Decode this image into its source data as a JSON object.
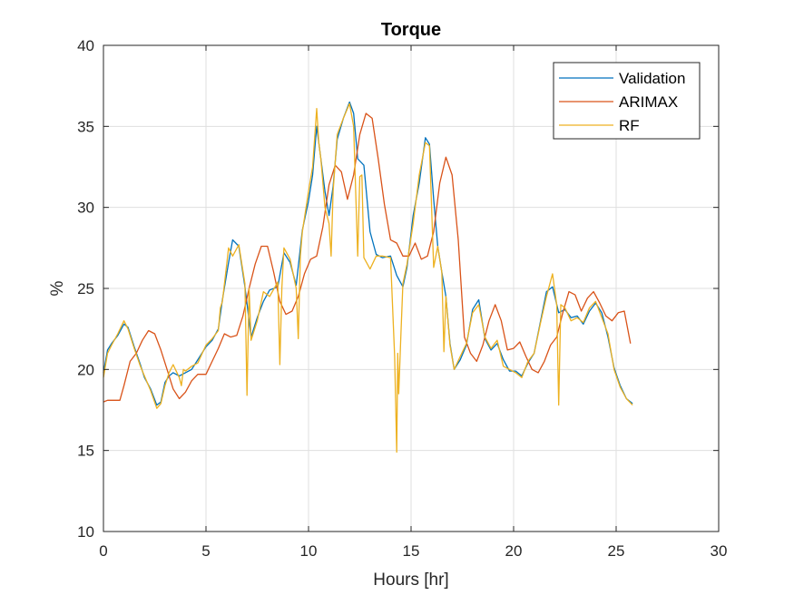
{
  "chart_data": {
    "type": "line",
    "title": "Torque",
    "xlabel": "Hours [hr]",
    "ylabel": "%",
    "xlim": [
      0,
      30
    ],
    "ylim": [
      10,
      40
    ],
    "xticks": [
      0,
      5,
      10,
      15,
      20,
      25,
      30
    ],
    "yticks": [
      10,
      15,
      20,
      25,
      30,
      35,
      40
    ],
    "xtick_labels": [
      "0",
      "5",
      "10",
      "15",
      "20",
      "25",
      "30"
    ],
    "ytick_labels": [
      "10",
      "15",
      "20",
      "25",
      "30",
      "35",
      "40"
    ],
    "grid": true,
    "legend_position": "top-right",
    "series": [
      {
        "name": "Validation",
        "color": "#0072BD",
        "x": [
          0,
          0.2,
          0.4,
          0.7,
          1.0,
          1.2,
          1.5,
          1.8,
          2.0,
          2.3,
          2.6,
          2.8,
          3.0,
          3.2,
          3.4,
          3.7,
          4.0,
          4.3,
          4.6,
          5.0,
          5.3,
          5.6,
          5.8,
          6.1,
          6.3,
          6.6,
          6.9,
          7.2,
          7.5,
          7.8,
          8.1,
          8.5,
          8.8,
          9.1,
          9.4,
          9.7,
          10.0,
          10.2,
          10.4,
          10.6,
          10.8,
          11.0,
          11.2,
          11.4,
          11.7,
          12.0,
          12.2,
          12.4,
          12.7,
          13.0,
          13.3,
          13.6,
          14.0,
          14.3,
          14.6,
          14.8,
          15.1,
          15.4,
          15.7,
          15.9,
          16.1,
          16.3,
          16.5,
          16.7,
          16.9,
          17.1,
          17.4,
          17.7,
          18.0,
          18.3,
          18.6,
          18.9,
          19.2,
          19.5,
          19.8,
          20.1,
          20.4,
          20.7,
          21.0,
          21.3,
          21.6,
          21.9,
          22.2,
          22.5,
          22.8,
          23.1,
          23.4,
          23.7,
          24.0,
          24.3,
          24.6,
          24.9,
          25.2,
          25.5,
          25.8
        ],
        "y": [
          19.8,
          21.2,
          21.6,
          22.1,
          22.8,
          22.6,
          21.4,
          20.3,
          19.5,
          18.8,
          17.8,
          18.0,
          19.2,
          19.6,
          19.8,
          19.6,
          19.8,
          20.0,
          20.6,
          21.4,
          21.8,
          22.5,
          24.3,
          26.6,
          28.0,
          27.6,
          25.1,
          22.0,
          23.2,
          24.2,
          24.9,
          25.1,
          27.2,
          26.6,
          25.2,
          28.6,
          30.4,
          32.0,
          35.0,
          33.0,
          31.0,
          29.5,
          31.3,
          34.2,
          35.5,
          36.5,
          35.8,
          33.0,
          32.6,
          28.5,
          27.1,
          26.9,
          27.0,
          25.8,
          25.1,
          26.3,
          29.5,
          31.5,
          34.3,
          33.9,
          30.5,
          27.6,
          26.0,
          24.5,
          21.6,
          20.0,
          20.6,
          21.5,
          23.7,
          24.3,
          21.9,
          21.2,
          21.6,
          20.6,
          19.9,
          19.9,
          19.6,
          20.4,
          21.0,
          22.9,
          24.8,
          25.1,
          23.5,
          23.7,
          23.2,
          23.3,
          22.8,
          23.6,
          24.1,
          23.5,
          22.0,
          20.1,
          19.0,
          18.2,
          17.9
        ]
      },
      {
        "name": "ARIMAX",
        "color": "#D95319",
        "x": [
          0,
          0.2,
          0.5,
          0.8,
          1.0,
          1.3,
          1.6,
          1.9,
          2.2,
          2.5,
          2.8,
          3.1,
          3.4,
          3.7,
          4.0,
          4.3,
          4.6,
          5.0,
          5.3,
          5.6,
          5.9,
          6.2,
          6.5,
          6.8,
          7.1,
          7.4,
          7.7,
          8.0,
          8.3,
          8.6,
          8.9,
          9.2,
          9.5,
          9.8,
          10.1,
          10.4,
          10.7,
          11.0,
          11.3,
          11.6,
          11.9,
          12.2,
          12.5,
          12.8,
          13.1,
          13.4,
          13.7,
          14.0,
          14.3,
          14.6,
          14.9,
          15.2,
          15.5,
          15.8,
          16.1,
          16.4,
          16.7,
          17.0,
          17.3,
          17.6,
          17.9,
          18.2,
          18.5,
          18.8,
          19.1,
          19.4,
          19.7,
          20.0,
          20.3,
          20.6,
          20.9,
          21.2,
          21.5,
          21.8,
          22.1,
          22.4,
          22.7,
          23.0,
          23.3,
          23.6,
          23.9,
          24.2,
          24.5,
          24.8,
          25.1,
          25.4,
          25.7
        ],
        "y": [
          18.0,
          18.1,
          18.1,
          18.1,
          19.0,
          20.5,
          21.0,
          21.8,
          22.4,
          22.2,
          21.2,
          20.0,
          18.8,
          18.2,
          18.6,
          19.3,
          19.7,
          19.7,
          20.5,
          21.3,
          22.2,
          22.0,
          22.1,
          23.3,
          25.0,
          26.5,
          27.6,
          27.6,
          26.0,
          24.2,
          23.4,
          23.6,
          24.5,
          25.9,
          26.8,
          27.0,
          28.8,
          31.4,
          32.6,
          32.2,
          30.5,
          32.0,
          34.5,
          35.8,
          35.5,
          33.0,
          30.2,
          28.0,
          27.8,
          27.0,
          27.0,
          27.8,
          26.8,
          27.0,
          28.5,
          31.5,
          33.1,
          32.0,
          28.0,
          22.0,
          21.0,
          20.5,
          21.5,
          23.0,
          24.0,
          23.0,
          21.2,
          21.3,
          21.7,
          20.8,
          20.0,
          19.8,
          20.5,
          21.5,
          22.0,
          23.5,
          24.8,
          24.6,
          23.6,
          24.4,
          24.8,
          24.1,
          23.3,
          23.0,
          23.5,
          23.6,
          21.6
        ]
      },
      {
        "name": "RF",
        "color": "#EDB120",
        "x": [
          0,
          0.2,
          0.4,
          0.7,
          1.0,
          1.2,
          1.5,
          1.8,
          2.0,
          2.3,
          2.6,
          2.8,
          3.0,
          3.2,
          3.4,
          3.7,
          3.8,
          3.9,
          4.0,
          4.3,
          4.6,
          5.0,
          5.3,
          5.6,
          5.7,
          5.8,
          6.1,
          6.3,
          6.6,
          6.9,
          7.0,
          7.1,
          7.2,
          7.5,
          7.8,
          8.1,
          8.5,
          8.6,
          8.7,
          8.8,
          9.1,
          9.4,
          9.5,
          9.6,
          9.7,
          10.0,
          10.2,
          10.4,
          10.5,
          10.6,
          10.8,
          11.0,
          11.1,
          11.2,
          11.4,
          11.7,
          12.0,
          12.2,
          12.4,
          12.5,
          12.6,
          12.7,
          13.0,
          13.3,
          13.6,
          14.0,
          14.2,
          14.3,
          14.35,
          14.4,
          14.5,
          14.6,
          14.8,
          15.1,
          15.4,
          15.7,
          15.9,
          16.1,
          16.3,
          16.5,
          16.6,
          16.7,
          16.9,
          17.1,
          17.4,
          17.7,
          18.0,
          18.3,
          18.6,
          18.9,
          19.2,
          19.5,
          19.8,
          20.1,
          20.4,
          20.7,
          21.0,
          21.3,
          21.6,
          21.9,
          22.1,
          22.2,
          22.3,
          22.5,
          22.8,
          23.1,
          23.4,
          23.7,
          24.0,
          24.3,
          24.6,
          24.9,
          25.2,
          25.5,
          25.8
        ],
        "y": [
          19.5,
          21.0,
          21.5,
          22.2,
          23.0,
          22.5,
          21.3,
          20.2,
          19.6,
          18.7,
          17.6,
          17.9,
          19.0,
          19.8,
          20.3,
          19.5,
          19.0,
          20.0,
          19.9,
          20.2,
          20.4,
          21.5,
          21.9,
          22.4,
          23.8,
          24.2,
          27.5,
          27.0,
          27.7,
          25.3,
          18.4,
          25.0,
          21.8,
          23.0,
          24.8,
          24.5,
          25.4,
          20.3,
          25.0,
          27.5,
          26.8,
          25.0,
          21.9,
          27.0,
          28.5,
          31.0,
          32.5,
          36.1,
          34.0,
          33.0,
          30.0,
          29.0,
          27.0,
          31.0,
          34.5,
          35.5,
          36.4,
          35.0,
          27.0,
          31.9,
          32.0,
          26.9,
          26.2,
          27.0,
          27.0,
          26.9,
          20.8,
          14.9,
          21.0,
          18.5,
          22.0,
          25.3,
          26.5,
          29.0,
          32.0,
          34.0,
          33.8,
          26.3,
          27.6,
          26.0,
          21.1,
          24.5,
          21.5,
          20.0,
          20.8,
          21.6,
          23.5,
          24.0,
          22.0,
          21.3,
          21.8,
          20.2,
          20.0,
          19.8,
          19.5,
          20.5,
          21.0,
          22.8,
          24.5,
          25.9,
          24.0,
          17.8,
          24.0,
          23.8,
          23.0,
          23.2,
          22.9,
          23.8,
          24.2,
          23.2,
          22.2,
          20.0,
          18.9,
          18.2,
          17.8
        ]
      }
    ]
  }
}
